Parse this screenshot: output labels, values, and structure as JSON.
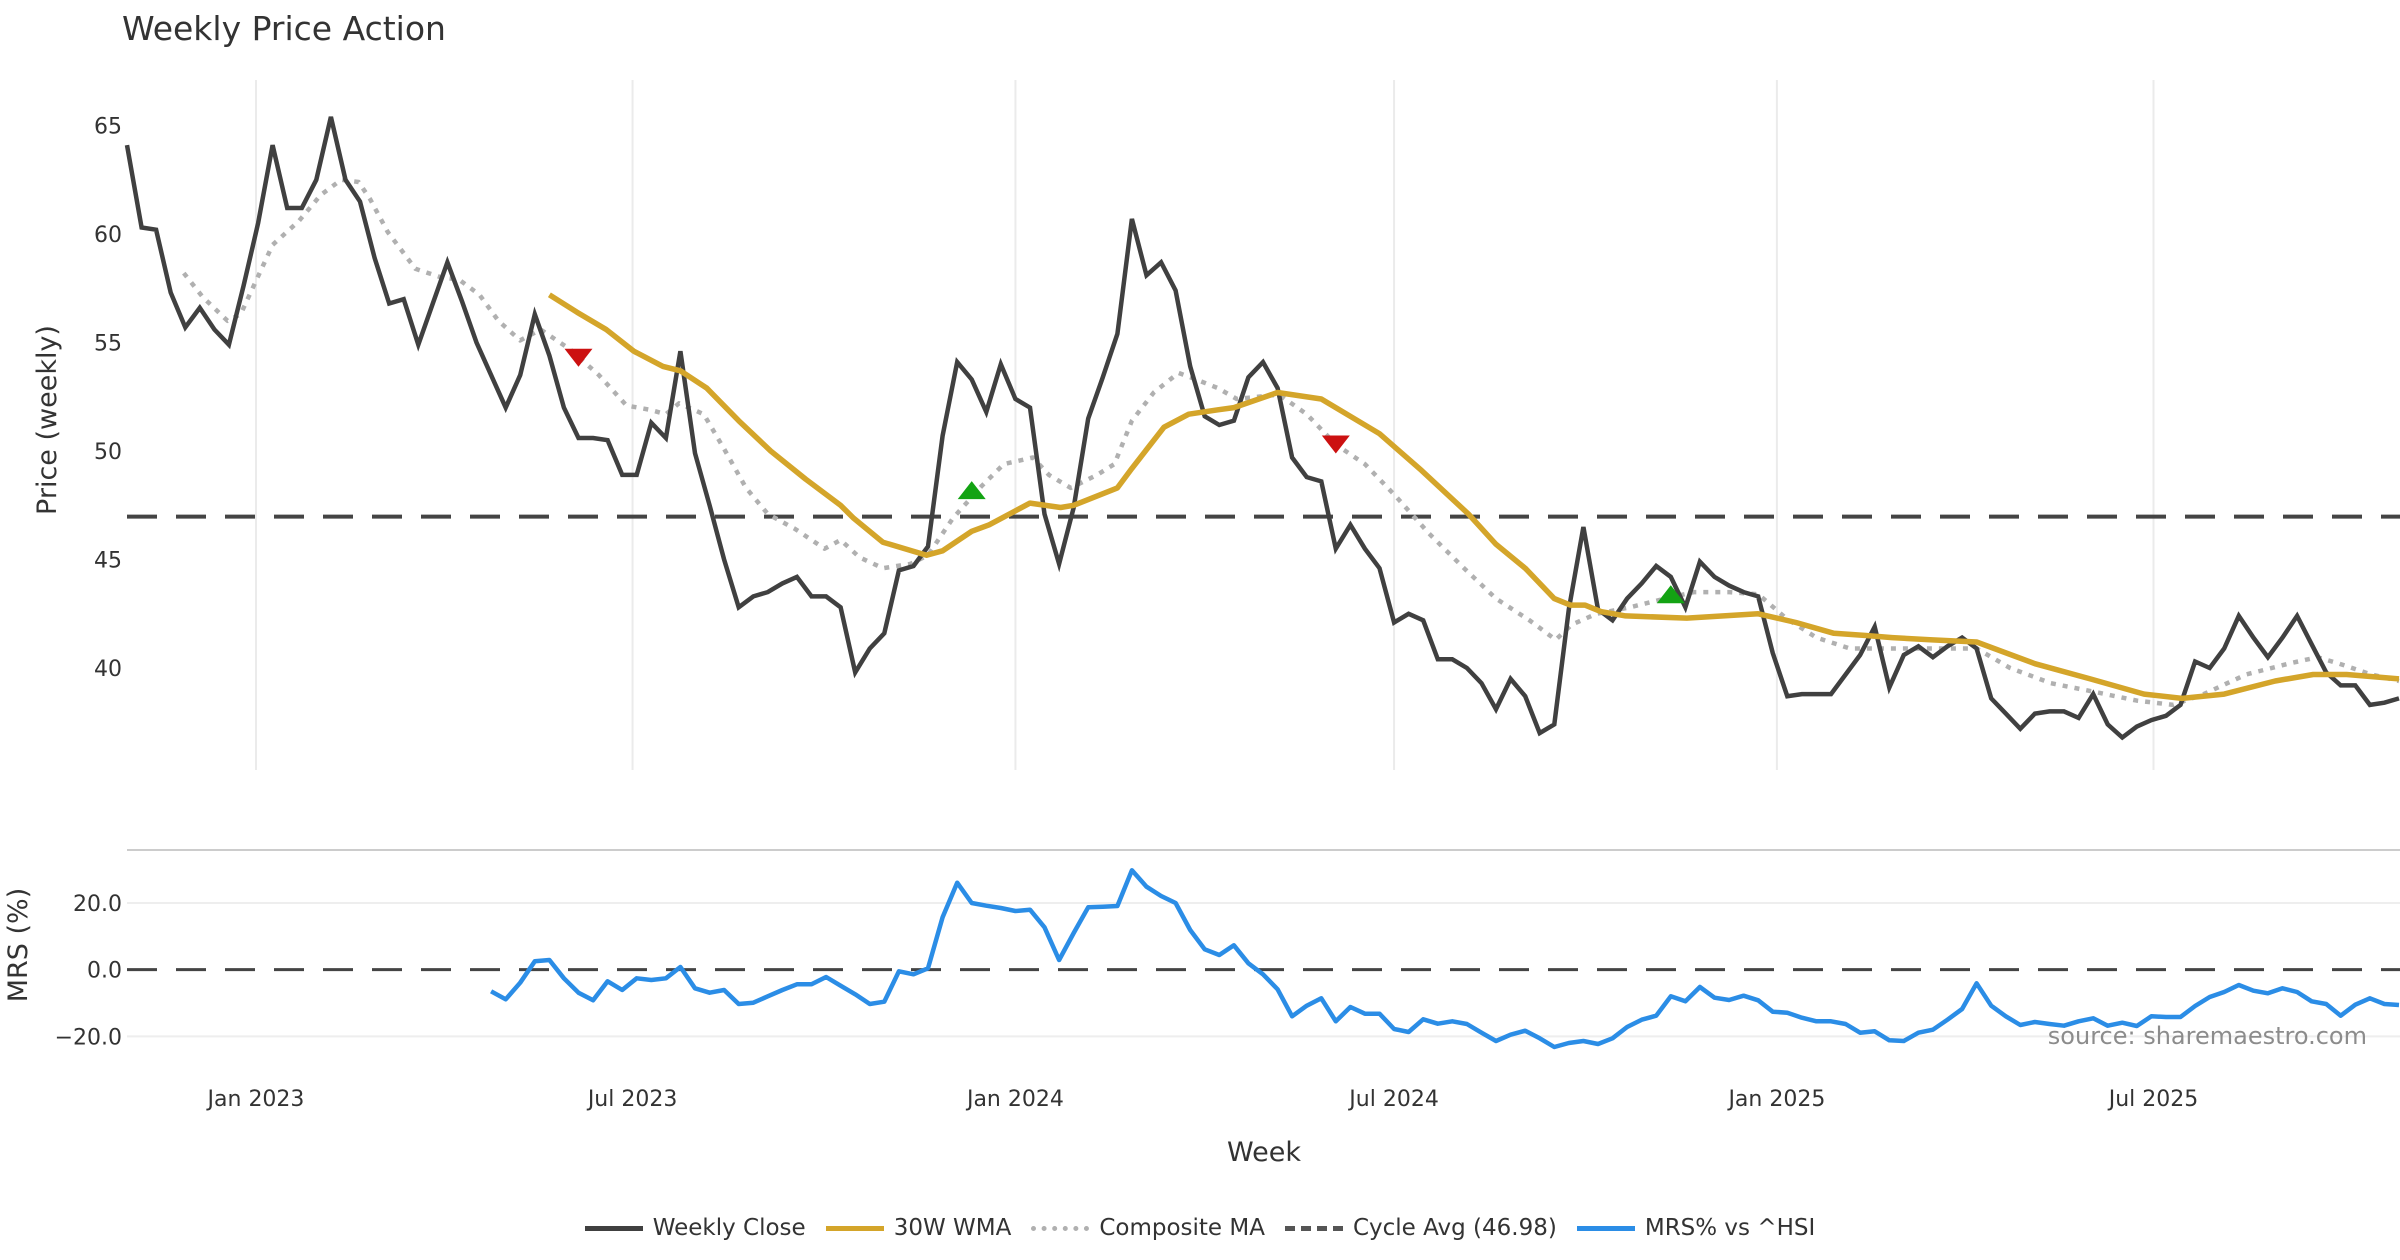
{
  "chart_data": {
    "type": "line",
    "title": "Weekly Price Action",
    "xlabel": "Week",
    "start_week": "2022-10-31",
    "week_count": 157,
    "x_ticks": [
      {
        "label": "Jan 2023",
        "date": "2023-01-01"
      },
      {
        "label": "Jul 2023",
        "date": "2023-07-01"
      },
      {
        "label": "Jan 2024",
        "date": "2024-01-01"
      },
      {
        "label": "Jul 2024",
        "date": "2024-07-01"
      },
      {
        "label": "Jan 2025",
        "date": "2025-01-01"
      },
      {
        "label": "Jul 2025",
        "date": "2025-07-01"
      }
    ],
    "price_panel": {
      "ylabel": "Price (weekly)",
      "ylim": [
        35.3,
        67.1
      ],
      "y_ticks": [
        {
          "value": 65,
          "label": "65"
        },
        {
          "value": 60,
          "label": "60"
        },
        {
          "value": 55,
          "label": "55"
        },
        {
          "value": 50,
          "label": "50"
        },
        {
          "value": 45,
          "label": "45"
        },
        {
          "value": 40,
          "label": "40"
        }
      ],
      "series": [
        {
          "name": "Weekly Close",
          "color": "#404040",
          "style": "solid",
          "values": [
            64.1,
            60.3,
            60.2,
            57.3,
            55.7,
            56.6,
            55.6,
            54.9,
            57.6,
            60.5,
            64.1,
            61.2,
            61.2,
            62.5,
            65.4,
            62.5,
            61.5,
            58.9,
            56.8,
            57.0,
            54.9,
            56.8,
            58.7,
            56.9,
            55.0,
            53.5,
            52.0,
            53.5,
            56.3,
            54.4,
            52.0,
            50.6,
            50.6,
            50.5,
            48.9,
            48.9,
            51.3,
            50.6,
            54.6,
            49.9,
            47.5,
            45.0,
            42.8,
            43.3,
            43.5,
            43.9,
            44.2,
            43.3,
            43.3,
            42.8,
            39.8,
            40.9,
            41.6,
            44.5,
            44.7,
            45.6,
            50.7,
            54.1,
            53.3,
            51.8,
            54.0,
            52.4,
            52.0,
            47.1,
            44.8,
            47.4,
            51.5,
            53.4,
            55.4,
            60.7,
            58.1,
            58.7,
            57.4,
            53.9,
            51.6,
            51.2,
            51.4,
            53.4,
            54.1,
            52.9,
            49.7,
            48.8,
            48.6,
            45.5,
            46.6,
            45.5,
            44.6,
            42.1,
            42.5,
            42.2,
            40.4,
            40.4,
            40.0,
            39.3,
            38.1,
            39.5,
            38.7,
            37.0,
            37.4,
            42.7,
            46.5,
            42.7,
            42.2,
            43.2,
            43.9,
            44.7,
            44.2,
            42.8,
            44.9,
            44.2,
            43.8,
            43.5,
            43.3,
            40.7,
            38.7,
            38.8,
            38.8,
            38.8,
            39.7,
            40.6,
            41.9,
            39.1,
            40.6,
            41.0,
            40.5,
            41.0,
            41.4,
            40.9,
            38.6,
            37.9,
            37.2,
            37.9,
            38.0,
            38.0,
            37.7,
            38.8,
            37.4,
            36.8,
            37.3,
            37.6,
            37.8,
            38.3,
            40.3,
            40.0,
            40.9,
            42.4,
            41.4,
            40.5,
            41.4,
            42.4,
            41.1,
            39.8,
            39.2,
            39.2,
            38.3,
            38.4,
            38.6
          ]
        },
        {
          "name": "30W WMA",
          "color": "#d4a52a",
          "style": "solid",
          "points": [
            [
              29.0,
              57.2
            ],
            [
              30.9,
              56.4
            ],
            [
              32.9,
              55.6
            ],
            [
              34.8,
              54.6
            ],
            [
              36.8,
              53.9
            ],
            [
              38.0,
              53.7
            ],
            [
              39.8,
              52.9
            ],
            [
              42.0,
              51.4
            ],
            [
              44.2,
              50.0
            ],
            [
              46.6,
              48.7
            ],
            [
              49.0,
              47.5
            ],
            [
              49.9,
              46.9
            ],
            [
              51.9,
              45.8
            ],
            [
              54.9,
              45.2
            ],
            [
              56.0,
              45.4
            ],
            [
              58.0,
              46.3
            ],
            [
              59.2,
              46.6
            ],
            [
              62.0,
              47.6
            ],
            [
              64.1,
              47.4
            ],
            [
              65.0,
              47.5
            ],
            [
              68.0,
              48.3
            ],
            [
              69.0,
              49.2
            ],
            [
              71.2,
              51.1
            ],
            [
              72.9,
              51.7
            ],
            [
              74.9,
              51.9
            ],
            [
              76.0,
              52.0
            ],
            [
              79.0,
              52.7
            ],
            [
              82.0,
              52.4
            ],
            [
              86.0,
              50.8
            ],
            [
              88.9,
              49.1
            ],
            [
              92.1,
              47.1
            ],
            [
              94.0,
              45.7
            ],
            [
              96.0,
              44.6
            ],
            [
              98.0,
              43.2
            ],
            [
              99.1,
              42.9
            ],
            [
              100.1,
              42.9
            ],
            [
              101.2,
              42.6
            ],
            [
              102.9,
              42.4
            ],
            [
              107.1,
              42.3
            ],
            [
              112.0,
              42.5
            ],
            [
              114.6,
              42.1
            ],
            [
              117.2,
              41.6
            ],
            [
              119.4,
              41.5
            ],
            [
              121.2,
              41.4
            ],
            [
              123.8,
              41.3
            ],
            [
              127.0,
              41.2
            ],
            [
              131.0,
              40.2
            ],
            [
              134.8,
              39.5
            ],
            [
              138.5,
              38.8
            ],
            [
              141.1,
              38.6
            ],
            [
              144.0,
              38.8
            ],
            [
              147.5,
              39.4
            ],
            [
              150.1,
              39.7
            ],
            [
              152.4,
              39.7
            ],
            [
              156.0,
              39.5
            ]
          ]
        },
        {
          "name": "Composite MA",
          "color": "#b0b0b0",
          "style": "dotted",
          "points": [
            [
              3.9,
              58.2
            ],
            [
              5.2,
              57.1
            ],
            [
              6.9,
              56.0
            ],
            [
              7.8,
              56.3
            ],
            [
              8.9,
              57.9
            ],
            [
              10.0,
              59.5
            ],
            [
              11.8,
              60.6
            ],
            [
              13.3,
              61.8
            ],
            [
              14.7,
              62.5
            ],
            [
              15.9,
              62.4
            ],
            [
              16.7,
              61.6
            ],
            [
              17.9,
              60.1
            ],
            [
              19.8,
              58.4
            ],
            [
              21.6,
              58.0
            ],
            [
              22.8,
              57.9
            ],
            [
              24.2,
              57.2
            ],
            [
              25.5,
              56.0
            ],
            [
              27.0,
              55.1
            ],
            [
              28.4,
              55.6
            ],
            [
              30.4,
              54.7
            ],
            [
              32.4,
              53.5
            ],
            [
              34.3,
              52.1
            ],
            [
              35.9,
              51.9
            ],
            [
              37.0,
              51.7
            ],
            [
              37.9,
              52.2
            ],
            [
              39.6,
              51.7
            ],
            [
              41.0,
              50.1
            ],
            [
              42.5,
              48.3
            ],
            [
              44.0,
              47.1
            ],
            [
              45.9,
              46.4
            ],
            [
              47.9,
              45.5
            ],
            [
              49.0,
              45.9
            ],
            [
              50.3,
              45.1
            ],
            [
              51.9,
              44.6
            ],
            [
              53.8,
              44.8
            ],
            [
              55.0,
              45.2
            ],
            [
              56.7,
              46.9
            ],
            [
              58.7,
              48.4
            ],
            [
              60.2,
              49.4
            ],
            [
              62.2,
              49.7
            ],
            [
              63.3,
              48.9
            ],
            [
              64.8,
              48.3
            ],
            [
              66.6,
              48.9
            ],
            [
              67.8,
              49.4
            ],
            [
              69.0,
              51.4
            ],
            [
              70.5,
              52.7
            ],
            [
              72.2,
              53.6
            ],
            [
              73.4,
              53.3
            ],
            [
              74.9,
              52.9
            ],
            [
              76.2,
              52.4
            ],
            [
              79.1,
              52.6
            ],
            [
              81.0,
              51.7
            ],
            [
              83.0,
              50.3
            ],
            [
              85.0,
              49.4
            ],
            [
              87.0,
              48.0
            ],
            [
              89.4,
              46.2
            ],
            [
              91.8,
              44.6
            ],
            [
              94.0,
              43.2
            ],
            [
              96.3,
              42.2
            ],
            [
              98.1,
              41.3
            ],
            [
              99.2,
              42.0
            ],
            [
              100.9,
              42.5
            ],
            [
              103.2,
              42.8
            ],
            [
              105.6,
              43.2
            ],
            [
              107.6,
              43.5
            ],
            [
              110.0,
              43.5
            ],
            [
              112.0,
              43.4
            ],
            [
              113.9,
              42.3
            ],
            [
              116.0,
              41.4
            ],
            [
              118.3,
              40.9
            ],
            [
              120.9,
              40.9
            ],
            [
              123.8,
              40.9
            ],
            [
              127.0,
              40.9
            ],
            [
              129.3,
              40.0
            ],
            [
              132.1,
              39.3
            ],
            [
              135.1,
              38.9
            ],
            [
              138.0,
              38.5
            ],
            [
              140.5,
              38.3
            ],
            [
              142.6,
              38.8
            ],
            [
              145.5,
              39.7
            ],
            [
              148.4,
              40.2
            ],
            [
              150.4,
              40.5
            ],
            [
              151.9,
              40.2
            ],
            [
              154.1,
              39.7
            ],
            [
              156.0,
              39.4
            ]
          ]
        }
      ],
      "cycle_avg": {
        "name": "Cycle Avg (46.98)",
        "value": 46.98,
        "color": "#444444",
        "style": "dashed"
      },
      "signals": [
        {
          "type": "sell",
          "week": 31,
          "value": 54.3,
          "color": "#cc1111"
        },
        {
          "type": "buy",
          "week": 58,
          "value": 48.2,
          "color": "#13a313"
        },
        {
          "type": "sell",
          "week": 83,
          "value": 50.3,
          "color": "#cc1111"
        },
        {
          "type": "buy",
          "week": 106,
          "value": 43.4,
          "color": "#13a313"
        }
      ]
    },
    "mrs_panel": {
      "ylabel": "MRS (%)",
      "ylim": [
        -30.7,
        32.3
      ],
      "y_ticks": [
        {
          "value": 20,
          "label": "20.0"
        },
        {
          "value": 0,
          "label": "0.0"
        },
        {
          "value": -20,
          "label": "−20.0"
        }
      ],
      "series": {
        "name": "MRS% vs ^HSI",
        "color": "#2b8de6",
        "start_week": 25,
        "values": [
          -6.5,
          -8.9,
          -3.9,
          2.5,
          2.9,
          -2.6,
          -6.9,
          -9.2,
          -3.5,
          -6.1,
          -2.6,
          -3.1,
          -2.6,
          0.8,
          -5.6,
          -6.9,
          -6.1,
          -10.3,
          -9.9,
          -8.0,
          -6.1,
          -4.4,
          -4.4,
          -2.2,
          -4.8,
          -7.4,
          -10.3,
          -9.6,
          -0.5,
          -1.4,
          0.4,
          15.7,
          26.1,
          20.0,
          19.2,
          18.5,
          17.6,
          18.0,
          12.7,
          2.9,
          11.0,
          18.7,
          18.9,
          19.1,
          29.8,
          24.9,
          22.1,
          20.0,
          11.9,
          6.1,
          4.4,
          7.3,
          1.9,
          -1.4,
          -5.9,
          -14.0,
          -10.8,
          -8.6,
          -15.5,
          -11.2,
          -13.2,
          -13.2,
          -17.8,
          -18.7,
          -14.9,
          -16.2,
          -15.5,
          -16.3,
          -18.9,
          -21.4,
          -19.5,
          -18.3,
          -20.6,
          -23.2,
          -22.0,
          -21.4,
          -22.3,
          -20.6,
          -17.2,
          -15.0,
          -13.8,
          -8.0,
          -9.5,
          -5.2,
          -8.4,
          -9.1,
          -7.8,
          -9.2,
          -12.6,
          -12.9,
          -14.4,
          -15.5,
          -15.5,
          -16.3,
          -18.9,
          -18.5,
          -21.2,
          -21.4,
          -18.9,
          -18.0,
          -15.0,
          -11.8,
          -4.1,
          -10.8,
          -14.0,
          -16.6,
          -15.7,
          -16.3,
          -16.8,
          -15.5,
          -14.6,
          -16.8,
          -15.9,
          -16.9,
          -14.0,
          -14.2,
          -14.2,
          -10.9,
          -8.2,
          -6.7,
          -4.6,
          -6.3,
          -7.1,
          -5.6,
          -6.7,
          -9.5,
          -10.3,
          -13.8,
          -10.5,
          -8.6,
          -10.3,
          -10.6
        ]
      },
      "zero_line": {
        "value": 0,
        "color": "#444444",
        "style": "dashed"
      }
    },
    "watermark": "source: sharemaestro.com",
    "legend": {
      "placement": "bottom-center",
      "entries": [
        {
          "label": "Weekly Close",
          "color": "#404040",
          "style": "solid"
        },
        {
          "label": "30W WMA",
          "color": "#d4a52a",
          "style": "solid"
        },
        {
          "label": "Composite MA",
          "color": "#b0b0b0",
          "style": "dotted"
        },
        {
          "label": "Cycle Avg (46.98)",
          "color": "#555555",
          "style": "dashed"
        },
        {
          "label": "MRS% vs ^HSI",
          "color": "#2b8de6",
          "style": "solid"
        }
      ]
    }
  }
}
